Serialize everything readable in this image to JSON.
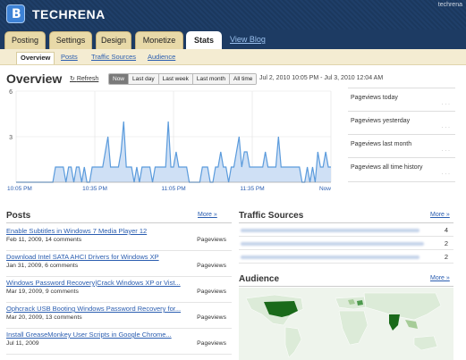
{
  "header": {
    "brand": "TECHRENA",
    "user": "techrena"
  },
  "tabs": [
    {
      "label": "Posting"
    },
    {
      "label": "Settings"
    },
    {
      "label": "Design"
    },
    {
      "label": "Monetize"
    },
    {
      "label": "Stats"
    }
  ],
  "view_blog": "View Blog",
  "subtabs": [
    {
      "label": "Overview"
    },
    {
      "label": "Posts"
    },
    {
      "label": "Traffic Sources"
    },
    {
      "label": "Audience"
    }
  ],
  "overview": {
    "title": "Overview",
    "refresh": "Refresh",
    "date_range": "Jul 2, 2010 10:05 PM - Jul 3, 2010 12:04 AM",
    "range_buttons": [
      {
        "label": "Now"
      },
      {
        "label": "Last day"
      },
      {
        "label": "Last week"
      },
      {
        "label": "Last month"
      },
      {
        "label": "All time"
      }
    ]
  },
  "stats": [
    {
      "label": "Pageviews today"
    },
    {
      "label": "Pageviews yesterday"
    },
    {
      "label": "Pageviews last month"
    },
    {
      "label": "Pageviews all time history"
    }
  ],
  "posts": {
    "title": "Posts",
    "more": "More »",
    "pageviews_label": "Pageviews",
    "items": [
      {
        "title": "Enable Subtitles in Windows 7 Media Player 12",
        "meta": "Feb 11, 2009, 14 comments"
      },
      {
        "title": "Download Intel SATA AHCI Drivers for Windows XP",
        "meta": "Jan 31, 2009, 6 comments"
      },
      {
        "title": "Windows Password Recovery|Crack Windows XP or Vist...",
        "meta": "Mar 19, 2009, 9 comments"
      },
      {
        "title": "Ophcrack USB Booting Windows Password Recovery for...",
        "meta": "Mar 20, 2009, 13 comments"
      },
      {
        "title": "Install GreaseMonkey User Scripts in Google Chrome...",
        "meta": "Jul 11, 2009"
      }
    ]
  },
  "traffic": {
    "title": "Traffic Sources",
    "more": "More »",
    "items": [
      {
        "count": "4"
      },
      {
        "count": "2"
      },
      {
        "count": "2"
      }
    ]
  },
  "audience": {
    "title": "Audience",
    "more": "More »"
  },
  "chart_data": {
    "type": "area",
    "x_tick_labels": [
      "10:05 PM",
      "10:35 PM",
      "11:05 PM",
      "11:35 PM",
      "Now"
    ],
    "y_ticks": [
      "6",
      "3"
    ],
    "ylim": [
      0,
      6
    ],
    "grid": true,
    "values": [
      0,
      0,
      0,
      0,
      0,
      0,
      0,
      0,
      0,
      0,
      0,
      0,
      0,
      0,
      0,
      1,
      1,
      1,
      1,
      0,
      1,
      1,
      0,
      1,
      1,
      0,
      1,
      0,
      0,
      1,
      1,
      1,
      1,
      1,
      2,
      3,
      1,
      1,
      1,
      1,
      2,
      4,
      1,
      1,
      1,
      0,
      1,
      0,
      1,
      1,
      1,
      1,
      0,
      1,
      1,
      1,
      1,
      1,
      4,
      1,
      1,
      2,
      1,
      1,
      1,
      1,
      0,
      0,
      0,
      0,
      0,
      1,
      1,
      1,
      0,
      0,
      1,
      1,
      2,
      1,
      1,
      0,
      1,
      1,
      2,
      3,
      1,
      2,
      2,
      1,
      1,
      1,
      1,
      1,
      1,
      2,
      1,
      1,
      1,
      1,
      3,
      1,
      1,
      1,
      1,
      1,
      1,
      1,
      1,
      0,
      0,
      1,
      0,
      1,
      0,
      2,
      1,
      1,
      2,
      1,
      1
    ]
  }
}
